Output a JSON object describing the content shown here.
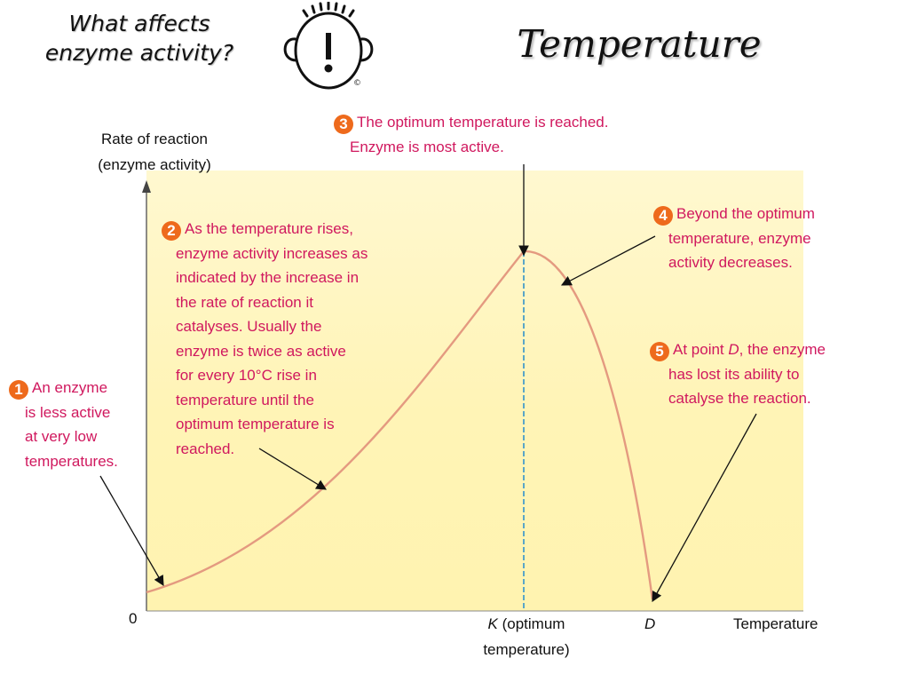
{
  "header": {
    "question_line1": "What affects",
    "question_line2": "enzyme activity?",
    "title": "Temperature"
  },
  "mascot": {
    "icon": "exclamation-face-icon",
    "mark": "©"
  },
  "chart_data": {
    "type": "line",
    "ylabel_line1": "Rate of reaction",
    "ylabel_line2": "(enzyme activity)",
    "xlabel": "Temperature",
    "origin_label": "0",
    "x_ticks": [
      {
        "name": "K",
        "line1_rest": " (optimum",
        "line2": "temperature)"
      },
      {
        "name": "D"
      }
    ],
    "curve_color": "#e49a80",
    "optimum_line_color": "#5aa6c8",
    "background_color": "#fff4b6"
  },
  "annotations": [
    {
      "number": "1",
      "first": "An enzyme",
      "lines": [
        "is less active",
        "at very low",
        "temperatures."
      ]
    },
    {
      "number": "2",
      "first": "As the temperature rises,",
      "lines": [
        "enzyme activity increases as",
        "indicated by the increase in",
        "the rate of reaction it",
        "catalyses. Usually the",
        "enzyme is twice as active",
        "for every 10°C rise in",
        "temperature until the",
        "optimum temperature is",
        "reached."
      ]
    },
    {
      "number": "3",
      "first": "The optimum temperature is reached.",
      "lines": [
        "Enzyme is most active."
      ]
    },
    {
      "number": "4",
      "first": "Beyond the optimum",
      "lines": [
        "temperature, enzyme",
        "activity decreases."
      ]
    },
    {
      "number": "5",
      "first_pre": "At point ",
      "first_em": "D",
      "first_post": ", the enzyme",
      "lines": [
        "has lost its ability to",
        "catalyse the reaction."
      ]
    }
  ],
  "colors": {
    "annotation_text": "#d0185e",
    "badge": "#ee6a1c"
  }
}
